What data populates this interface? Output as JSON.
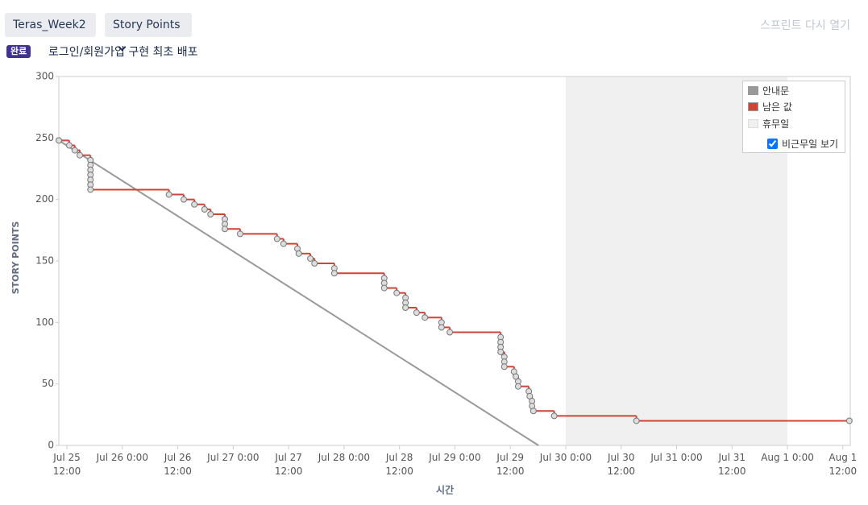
{
  "toolbar": {
    "sprint_select": "Teras_Week2",
    "metric_select": "Story Points",
    "reopen": "스프린트 다시 열기"
  },
  "sprint": {
    "status": "완료",
    "goal": "로그인/회원가입 구현 최초 배포"
  },
  "chart_data": {
    "type": "line",
    "xlabel": "시간",
    "ylabel": "STORY POINTS",
    "xlim": [
      10.25,
      181.6
    ],
    "ylim": [
      0,
      300
    ],
    "yticks": [
      0,
      50,
      100,
      150,
      200,
      250,
      300
    ],
    "xticks": [
      {
        "value": 12,
        "label": "Jul 25\n12:00"
      },
      {
        "value": 24,
        "label": "Jul 26 0:00"
      },
      {
        "value": 36,
        "label": "Jul 26\n12:00"
      },
      {
        "value": 48,
        "label": "Jul 27 0:00"
      },
      {
        "value": 60,
        "label": "Jul 27\n12:00"
      },
      {
        "value": 72,
        "label": "Jul 28 0:00"
      },
      {
        "value": 84,
        "label": "Jul 28\n12:00"
      },
      {
        "value": 96,
        "label": "Jul 29 0:00"
      },
      {
        "value": 108,
        "label": "Jul 29\n12:00"
      },
      {
        "value": 120,
        "label": "Jul 30 0:00"
      },
      {
        "value": 132,
        "label": "Jul 30\n12:00"
      },
      {
        "value": 144,
        "label": "Jul 31 0:00"
      },
      {
        "value": 156,
        "label": "Jul 31\n12:00"
      },
      {
        "value": 168,
        "label": "Aug 1 0:00"
      },
      {
        "value": 180,
        "label": "Aug 1\n12:00"
      }
    ],
    "series": [
      {
        "name": "안내문",
        "color": "#999999",
        "step": false,
        "markers": false,
        "x": [
          10.25,
          114.1
        ],
        "values": [
          248,
          0
        ]
      },
      {
        "name": "남은 값",
        "color": "#d04437",
        "step": true,
        "markers": true,
        "x": [
          10.25,
          12.5,
          13.7,
          14.8,
          17.1,
          17.1,
          17.1,
          17.1,
          17.1,
          17.1,
          17.1,
          34.1,
          37.3,
          39.6,
          41.8,
          43.1,
          46.2,
          46.2,
          46.2,
          49.5,
          57.5,
          58.9,
          61.9,
          62.2,
          64.7,
          65.6,
          69.9,
          69.9,
          80.7,
          80.7,
          80.7,
          83.4,
          85.3,
          85.3,
          85.3,
          87.7,
          89.5,
          93.1,
          93.1,
          94.9,
          105.9,
          105.9,
          105.9,
          105.9,
          106.7,
          106.7,
          106.7,
          108.8,
          109.2,
          109.7,
          109.7,
          112.0,
          112.2,
          112.7,
          112.7,
          113.0,
          117.5,
          135.3,
          181.4
        ],
        "values": [
          248,
          244,
          240,
          236,
          232,
          228,
          224,
          220,
          216,
          212,
          208,
          204,
          200,
          196,
          192,
          188,
          184,
          180,
          176,
          172,
          168,
          164,
          160,
          156,
          152,
          148,
          144,
          140,
          136,
          132,
          128,
          124,
          120,
          116,
          112,
          108,
          104,
          100,
          96,
          92,
          88,
          84,
          80,
          76,
          72,
          68,
          64,
          60,
          56,
          52,
          48,
          44,
          40,
          36,
          32,
          28,
          24,
          20,
          20
        ]
      }
    ],
    "nonworking": {
      "name": "휴무일",
      "color": "#f0f0f0",
      "ranges": [
        [
          120,
          168
        ]
      ]
    },
    "legend": {
      "position": "upper right",
      "toggle": "비근무일 보기",
      "toggle_checked": true
    }
  }
}
